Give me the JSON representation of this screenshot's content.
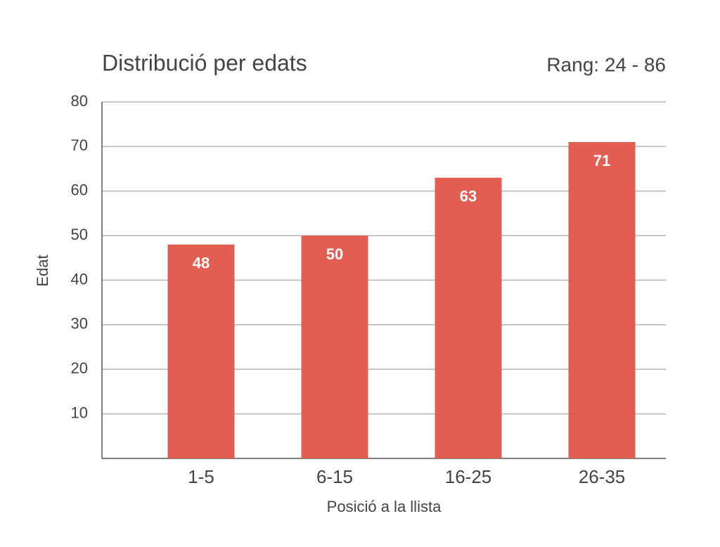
{
  "chart_data": {
    "type": "bar",
    "title": "Distribució per edats",
    "annotation": "Rang: 24 - 86",
    "x_label": "Posició a la llista",
    "y_label": "Edat",
    "categories": [
      "1-5",
      "6-15",
      "16-25",
      "26-35"
    ],
    "values": [
      48,
      50,
      63,
      71
    ],
    "color": "#e25e52",
    "ylim": [
      0,
      80
    ],
    "yticks": [
      10,
      20,
      30,
      40,
      50,
      60,
      70,
      80
    ],
    "grid": true
  }
}
